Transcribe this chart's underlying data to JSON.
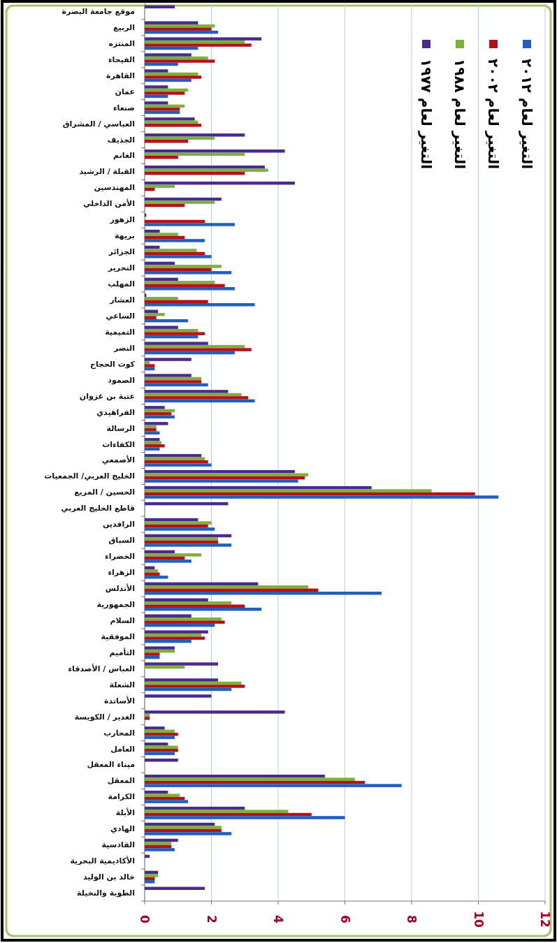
{
  "chart_data": {
    "type": "bar",
    "orientation": "horizontal",
    "xlim": [
      0,
      12
    ],
    "xticks": [
      0,
      2,
      4,
      6,
      8,
      10,
      12
    ],
    "grid": "x",
    "legend": "top right",
    "categories": [
      "موقع جامعة البصرة",
      "الربيع",
      "المنتزه",
      "الفيحاء",
      "القاهرة",
      "عمان",
      "صنعاء",
      "العباسي / المشراق",
      "الجذيف",
      "الغانم",
      "القبلة / الرشيد",
      "المهندسين",
      "الأمن الداخلي",
      "الزهور",
      "بريهة",
      "الجزائر",
      "التحرير",
      "المهلب",
      "العشار",
      "الساعي",
      "التميمية",
      "النصر",
      "كوت الحجاج",
      "الصمود",
      "عتبة بن غزوان",
      "الفراهيدي",
      "الرسالة",
      "الكفاءات",
      "الأصمعي",
      "الخليج العربي/ الجمعيات",
      "الحسين / المربع",
      "قاطع الخليج العربي",
      "الرافدين",
      "السباق",
      "الخضراء",
      "الزهراء",
      "الأندلس",
      "الجمهورية",
      "السلام",
      "الموفقية",
      "التأميم",
      "العباس / الأصدقاء",
      "الشعلة",
      "الأساتذة",
      "الغدير / الكويسة",
      "المحارب",
      "العامل",
      "ميناء المعقل",
      "المعقل",
      "الكرامة",
      "الأبلة",
      "الهادي",
      "القادسية",
      "الأكاديمية البحرية",
      "خالد بن الوليد",
      "الطوبة والنخيلة"
    ],
    "series": [
      {
        "name": "التغير لعام ١٩٧٧",
        "color": "#4a2a8c",
        "values": [
          0.9,
          1.6,
          3.5,
          1.4,
          0.7,
          0.7,
          0.7,
          1.5,
          3.0,
          4.2,
          3.6,
          4.5,
          2.3,
          0.05,
          0.45,
          0.45,
          0.9,
          1.0,
          0.05,
          0.4,
          1.0,
          1.9,
          1.4,
          1.4,
          2.5,
          0.6,
          0.7,
          0.45,
          1.7,
          4.5,
          6.8,
          2.5,
          1.6,
          2.6,
          0.9,
          0.3,
          3.4,
          1.9,
          1.4,
          1.9,
          0.9,
          2.2,
          2.2,
          2.0,
          4.2,
          0.6,
          0.7,
          1.0,
          5.4,
          0.7,
          3.0,
          2.1,
          1.0,
          0.15,
          0.4,
          1.8
        ]
      },
      {
        "name": "التغير لعام ١٩٨٨",
        "color": "#7cb13a",
        "values": [
          null,
          2.1,
          3.0,
          1.9,
          1.6,
          1.3,
          1.2,
          1.6,
          2.1,
          3.0,
          3.7,
          0.9,
          2.1,
          null,
          1.0,
          1.55,
          2.3,
          2.1,
          1.0,
          0.6,
          1.6,
          3.0,
          0.15,
          1.7,
          2.9,
          0.9,
          0.35,
          0.5,
          1.8,
          4.9,
          8.6,
          null,
          2.0,
          2.2,
          1.7,
          0.4,
          4.9,
          2.6,
          2.3,
          1.7,
          0.9,
          1.2,
          2.9,
          null,
          0.15,
          0.9,
          1.0,
          null,
          6.3,
          1.05,
          4.3,
          2.3,
          0.8,
          null,
          0.4,
          null
        ]
      },
      {
        "name": "التغير لعام ٢٠٠٢",
        "color": "#b3121c",
        "values": [
          null,
          2.0,
          3.2,
          2.1,
          1.7,
          1.2,
          1.05,
          1.7,
          1.3,
          1.0,
          3.0,
          0.3,
          1.2,
          1.8,
          1.2,
          1.8,
          2.0,
          2.4,
          1.9,
          0.35,
          1.8,
          3.2,
          0.3,
          1.7,
          3.1,
          0.8,
          0.35,
          0.6,
          1.9,
          4.8,
          9.9,
          null,
          1.9,
          2.2,
          1.2,
          0.45,
          5.2,
          3.0,
          2.4,
          1.8,
          0.45,
          null,
          3.0,
          null,
          0.15,
          1.0,
          1.0,
          null,
          6.6,
          1.2,
          5.0,
          2.3,
          0.8,
          null,
          0.3,
          null
        ]
      },
      {
        "name": "التغير لعام ٢٠١٢",
        "color": "#1f5fbf",
        "values": [
          null,
          2.2,
          1.6,
          1.0,
          1.4,
          0.7,
          1.05,
          null,
          null,
          null,
          null,
          null,
          null,
          2.7,
          1.8,
          2.0,
          2.6,
          2.7,
          3.3,
          1.3,
          1.6,
          2.7,
          0.3,
          1.9,
          3.3,
          0.9,
          0.45,
          0.45,
          2.0,
          4.6,
          10.6,
          null,
          2.1,
          2.6,
          1.4,
          0.7,
          7.1,
          3.5,
          2.1,
          1.4,
          0.45,
          null,
          2.6,
          null,
          null,
          0.9,
          0.9,
          null,
          7.7,
          1.3,
          6.0,
          2.6,
          0.9,
          null,
          0.3,
          null
        ]
      }
    ]
  }
}
